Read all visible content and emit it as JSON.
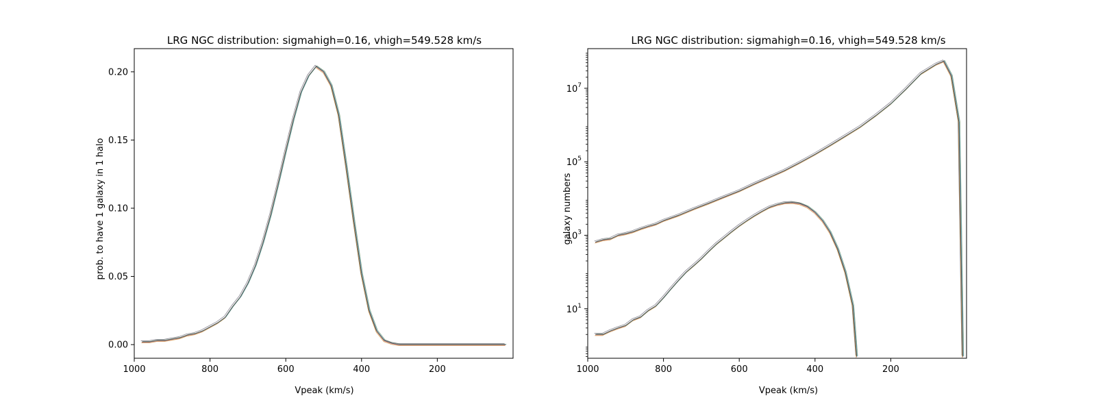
{
  "chart_data": [
    {
      "type": "line",
      "title": "LRG NGC distribution: sigmahigh=0.16, vhigh=549.528 km/s",
      "xlabel": "Vpeak (km/s)",
      "ylabel": "prob. to have 1 galaxy in 1 halo",
      "xlim": [
        1000,
        0
      ],
      "xaxis": "inverted",
      "ylim": [
        -0.01,
        0.217
      ],
      "xticks": [
        1000,
        800,
        600,
        400,
        200
      ],
      "xtick_labels": [
        "1000",
        "800",
        "600",
        "400",
        "200"
      ],
      "yticks": [
        0.0,
        0.05,
        0.1,
        0.15,
        0.2
      ],
      "ytick_labels": [
        "0.00",
        "0.05",
        "0.10",
        "0.15",
        "0.20"
      ],
      "grid": false,
      "legend": "none",
      "note": "about 10 overlapping thin realization curves; representative mean shown",
      "series": [
        {
          "x": [
            980,
            960,
            940,
            920,
            900,
            880,
            860,
            840,
            820,
            800,
            780,
            760,
            740,
            720,
            700,
            680,
            660,
            640,
            620,
            600,
            580,
            560,
            540,
            520,
            500,
            480,
            460,
            440,
            420,
            400,
            380,
            360,
            340,
            320,
            300,
            280,
            260,
            240,
            220,
            200,
            180,
            160,
            140,
            120,
            100,
            80,
            60,
            40,
            20
          ],
          "values": [
            0.002,
            0.002,
            0.003,
            0.003,
            0.004,
            0.005,
            0.007,
            0.008,
            0.01,
            0.013,
            0.016,
            0.02,
            0.028,
            0.035,
            0.045,
            0.058,
            0.075,
            0.095,
            0.118,
            0.142,
            0.165,
            0.185,
            0.197,
            0.204,
            0.2,
            0.19,
            0.168,
            0.13,
            0.09,
            0.052,
            0.025,
            0.01,
            0.003,
            0.001,
            0,
            0,
            0,
            0,
            0,
            0,
            0,
            0,
            0,
            0,
            0,
            0,
            0,
            0,
            0
          ]
        }
      ]
    },
    {
      "type": "line",
      "title": "LRG NGC distribution: sigmahigh=0.16, vhigh=549.528 km/s",
      "xlabel": "Vpeak (km/s)",
      "ylabel": "galaxy numbers",
      "yscale": "log",
      "xlim": [
        1000,
        0
      ],
      "xaxis": "inverted",
      "ylim": [
        0.45,
        120000000.0
      ],
      "xticks": [
        1000,
        800,
        600,
        400,
        200
      ],
      "xtick_labels": [
        "1000",
        "800",
        "600",
        "400",
        "200"
      ],
      "yticks": [
        10,
        1000,
        100000,
        10000000
      ],
      "ytick_labels": [
        {
          "base": "10",
          "exp": "1"
        },
        {
          "base": "10",
          "exp": "3"
        },
        {
          "base": "10",
          "exp": "5"
        },
        {
          "base": "10",
          "exp": "7"
        }
      ],
      "grid": false,
      "legend": "none",
      "note": "upper curve: total halos; lower: galaxies, about 10 overlapping realizations (representative shown)",
      "series": [
        {
          "x": [
            980,
            960,
            940,
            920,
            900,
            880,
            860,
            840,
            820,
            800,
            760,
            720,
            680,
            640,
            600,
            560,
            520,
            480,
            440,
            400,
            360,
            320,
            280,
            240,
            200,
            160,
            120,
            80,
            60,
            40,
            20,
            10
          ],
          "values": [
            650,
            750,
            800,
            1000,
            1100,
            1250,
            1500,
            1750,
            2000,
            2500,
            3500,
            5200,
            7500,
            11000,
            16000,
            25000,
            38000,
            58000,
            95000,
            160000,
            280000,
            500000,
            900000,
            1800000,
            3800000,
            9500000,
            25000000,
            45000000,
            55000000,
            22000000,
            1200000,
            0.5
          ]
        },
        {
          "x": [
            980,
            960,
            940,
            920,
            900,
            880,
            860,
            840,
            820,
            800,
            780,
            760,
            740,
            720,
            700,
            680,
            660,
            640,
            620,
            600,
            580,
            560,
            540,
            520,
            500,
            480,
            460,
            440,
            420,
            400,
            380,
            360,
            340,
            320,
            300,
            290
          ],
          "values": [
            2,
            2,
            2.5,
            3,
            3.5,
            5,
            6,
            9,
            12,
            20,
            35,
            60,
            100,
            150,
            230,
            370,
            580,
            850,
            1250,
            1800,
            2500,
            3400,
            4500,
            5800,
            6800,
            7600,
            7800,
            7300,
            6000,
            4200,
            2500,
            1200,
            420,
            100,
            12,
            0.5
          ]
        }
      ]
    }
  ]
}
